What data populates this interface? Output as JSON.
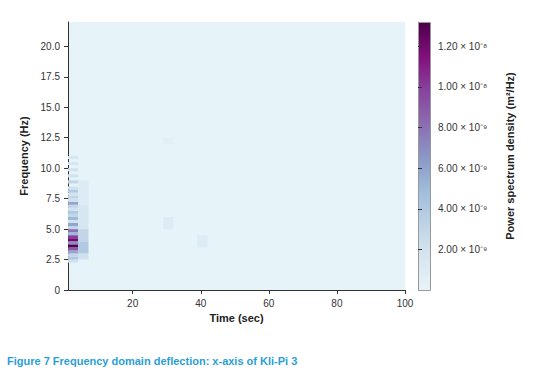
{
  "chart_data": {
    "type": "heatmap",
    "title": "Figure 7 Frequency domain deflection: x-axis of Kli-Pi 3",
    "x_label": "Time (sec)",
    "y_label": "Frequency (Hz)",
    "xlim": [
      1,
      100
    ],
    "xticks": [
      20,
      40,
      60,
      80,
      100
    ],
    "ylim": [
      0,
      22
    ],
    "yticks": [
      0,
      2.5,
      {
        "value": 5,
        "label": "5.0"
      },
      7.5,
      {
        "value": 10,
        "label": "10.0"
      },
      12.5,
      {
        "value": 15,
        "label": "15.0"
      },
      17.5,
      {
        "value": 20,
        "label": "20.0"
      }
    ],
    "grid": false,
    "colorbar": {
      "label": "Power spectrum density (m²/Hz)",
      "range": [
        0,
        1.32e-08
      ],
      "ticks": [
        {
          "value": 2e-09,
          "label": "2.00 × 10⁻⁹"
        },
        {
          "value": 4e-09,
          "label": "4.00 × 10⁻⁹"
        },
        {
          "value": 6e-09,
          "label": "6.00 × 10⁻⁹"
        },
        {
          "value": 8e-09,
          "label": "8.00 × 10⁻⁹"
        },
        {
          "value": 1e-08,
          "label": "1.00 × 10⁻⁸"
        },
        {
          "value": 1.2e-08,
          "label": "1.20 × 10⁻⁸"
        }
      ]
    },
    "cells": [
      [
        1,
        4,
        2.25,
        2.5,
        2e-09
      ],
      [
        1,
        4,
        2.5,
        2.75,
        4e-09
      ],
      [
        1,
        4,
        2.75,
        3.0,
        3e-09
      ],
      [
        1,
        4,
        3.0,
        3.25,
        6e-09
      ],
      [
        1,
        4,
        3.25,
        3.5,
        9e-09
      ],
      [
        1,
        4,
        3.5,
        3.75,
        1.3e-08
      ],
      [
        1,
        4,
        3.75,
        4.0,
        7e-09
      ],
      [
        1,
        4,
        4.0,
        4.25,
        1.2e-08
      ],
      [
        1,
        4,
        4.25,
        4.5,
        1e-08
      ],
      [
        1,
        4,
        4.5,
        4.75,
        5e-09
      ],
      [
        1,
        4,
        4.75,
        5.0,
        8e-09
      ],
      [
        1,
        4,
        5.0,
        5.25,
        3e-09
      ],
      [
        1,
        4,
        5.25,
        5.5,
        6e-09
      ],
      [
        1,
        4,
        5.5,
        5.75,
        2e-09
      ],
      [
        1,
        4,
        5.75,
        6.0,
        5e-09
      ],
      [
        1,
        4,
        6.0,
        6.25,
        3e-09
      ],
      [
        1,
        4,
        6.25,
        6.5,
        4e-09
      ],
      [
        1,
        4,
        6.5,
        6.75,
        2e-09
      ],
      [
        1,
        4,
        6.75,
        7.0,
        3e-09
      ],
      [
        1,
        4,
        7.0,
        7.25,
        6e-09
      ],
      [
        1,
        4,
        7.25,
        7.5,
        2e-09
      ],
      [
        1,
        4,
        7.5,
        7.75,
        3e-09
      ],
      [
        1,
        4,
        7.75,
        8.0,
        2e-09
      ],
      [
        1,
        4,
        8.0,
        8.25,
        4e-09
      ],
      [
        1,
        4,
        8.25,
        8.5,
        2e-09
      ],
      [
        1,
        4,
        8.75,
        9.0,
        3e-09
      ],
      [
        1,
        4,
        9.25,
        9.5,
        2e-09
      ],
      [
        1,
        4,
        9.75,
        10.0,
        2e-09
      ],
      [
        1,
        4,
        10.25,
        10.5,
        1.5e-09
      ],
      [
        1,
        4,
        10.75,
        11.0,
        1.5e-09
      ],
      [
        4,
        7,
        2.5,
        3.0,
        2e-09
      ],
      [
        4,
        7,
        3.0,
        4.0,
        4e-09
      ],
      [
        4,
        7,
        4.0,
        5.0,
        3e-09
      ],
      [
        4,
        7,
        5.0,
        7.0,
        1.5e-09
      ],
      [
        4,
        7,
        7.0,
        9.0,
        1e-09
      ],
      [
        29,
        32,
        5.0,
        6.0,
        1e-09
      ],
      [
        39,
        42,
        3.5,
        4.5,
        1e-09
      ],
      [
        29,
        32,
        12.0,
        12.5,
        5e-10
      ]
    ]
  }
}
